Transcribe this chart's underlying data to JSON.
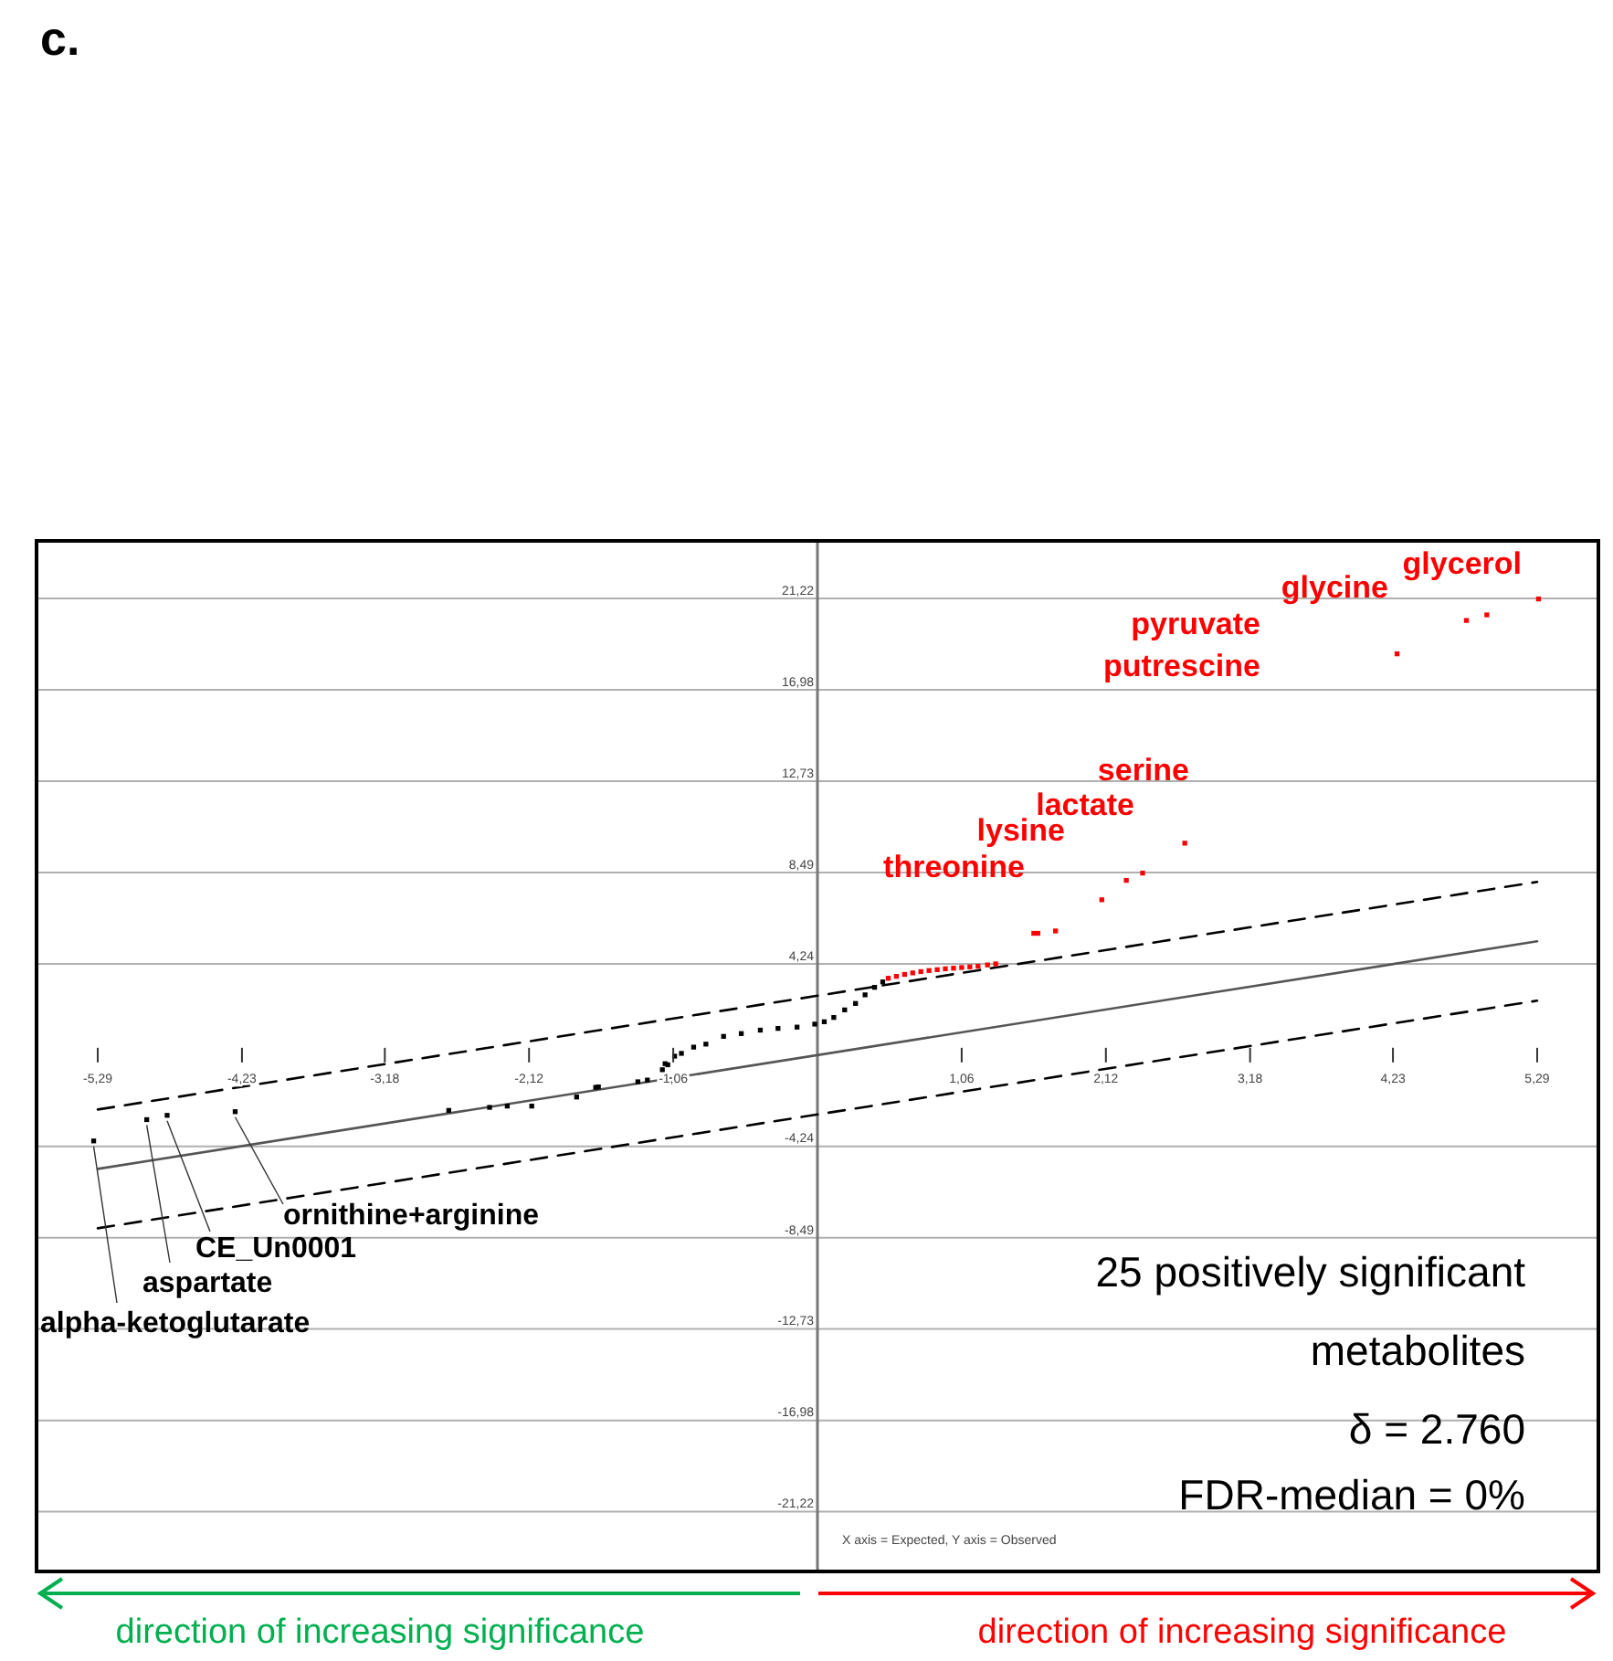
{
  "chart_data": {
    "type": "scatter",
    "title": "c.",
    "xlim": [
      -5.74,
      5.74
    ],
    "ylim": [
      -24,
      23.9
    ],
    "xticks": [
      {
        "value": -5.29,
        "label": "-5,29"
      },
      {
        "value": -4.23,
        "label": "-4,23"
      },
      {
        "value": -3.18,
        "label": "-3,18"
      },
      {
        "value": -2.12,
        "label": "-2,12"
      },
      {
        "value": -1.06,
        "label": "-1,06"
      },
      {
        "value": 1.06,
        "label": "1,06"
      },
      {
        "value": 2.12,
        "label": "2,12"
      },
      {
        "value": 3.18,
        "label": "3,18"
      },
      {
        "value": 4.23,
        "label": "4,23"
      },
      {
        "value": 5.29,
        "label": "5,29"
      }
    ],
    "yticks": [
      {
        "value": 21.22,
        "label": "21,22"
      },
      {
        "value": 16.98,
        "label": "16,98"
      },
      {
        "value": 12.73,
        "label": "12,73"
      },
      {
        "value": 8.49,
        "label": "8,49"
      },
      {
        "value": 4.24,
        "label": "4,24"
      },
      {
        "value": -4.24,
        "label": "-4,24"
      },
      {
        "value": -8.49,
        "label": "-8,49"
      },
      {
        "value": -12.73,
        "label": "-12,73"
      },
      {
        "value": -16.98,
        "label": "-16,98"
      },
      {
        "value": -21.22,
        "label": "-21,22"
      }
    ],
    "grid": "y",
    "marker": "square",
    "series": [
      {
        "color": "#ff0000",
        "x": [
          5.3,
          4.92,
          4.77,
          4.26,
          2.7,
          2.39,
          2.27,
          2.09,
          1.75,
          1.62,
          1.59,
          1.31,
          1.25,
          1.18,
          1.12,
          1.06,
          1.0,
          0.94,
          0.88,
          0.82,
          0.76,
          0.7,
          0.64,
          0.58,
          0.52
        ],
        "values": [
          21.2,
          20.46,
          20.2,
          18.65,
          9.85,
          8.46,
          8.12,
          7.22,
          5.77,
          5.66,
          5.66,
          4.24,
          4.19,
          4.13,
          4.1,
          4.07,
          4.04,
          4.01,
          3.97,
          3.93,
          3.88,
          3.82,
          3.75,
          3.66,
          3.57
        ]
      },
      {
        "color": "#000000",
        "x": [
          -5.32,
          -4.93,
          -4.78,
          -4.28,
          -2.71,
          -2.41,
          -2.28,
          -2.1,
          -1.77,
          -1.63,
          -1.61,
          -1.32,
          -1.25,
          -1.14,
          -1.12,
          -1.1,
          -1.05,
          -1.0,
          -0.91,
          -0.82,
          -0.69,
          -0.56,
          -0.42,
          -0.29,
          -0.15,
          -0.02,
          0.05,
          0.12,
          0.2,
          0.28,
          0.35,
          0.42,
          0.48
        ],
        "values": [
          -3.99,
          -3.0,
          -2.8,
          -2.63,
          -2.57,
          -2.43,
          -2.37,
          -2.37,
          -1.95,
          -1.5,
          -1.48,
          -1.24,
          -1.16,
          -0.68,
          -0.4,
          -0.45,
          -0.05,
          0.08,
          0.37,
          0.51,
          0.87,
          1.0,
          1.16,
          1.24,
          1.3,
          1.44,
          1.55,
          1.75,
          2.1,
          2.4,
          2.8,
          3.15,
          3.4
        ]
      },
      {
        "type": "line",
        "color": "#555555",
        "line_style": "solid",
        "marker": "none",
        "x": [
          -5.29,
          5.29
        ],
        "values": [
          -5.29,
          5.29
        ]
      },
      {
        "type": "line",
        "color": "#000000",
        "line_style": "dashed",
        "marker": "none",
        "x": [
          -5.29,
          5.29
        ],
        "values": [
          -2.53,
          8.05
        ]
      },
      {
        "type": "line",
        "color": "#000000",
        "line_style": "dashed",
        "marker": "none",
        "x": [
          -5.29,
          5.29
        ],
        "values": [
          -8.05,
          2.53
        ]
      }
    ],
    "annotations": [
      "glycerol",
      "glycine",
      "pyruvate",
      "putrescine",
      "serine",
      "lactate",
      "lysine",
      "threonine",
      {
        "text": "ornithine+arginine",
        "x": -4.28,
        "y": -2.63
      },
      {
        "text": "CE_Un0001",
        "x": -4.78,
        "y": -2.8
      },
      {
        "text": "aspartate",
        "x": -4.93,
        "y": -3.0
      },
      {
        "text": "alpha-ketoglutarate",
        "x": -5.32,
        "y": -3.99
      },
      "25 positively significant metabolites",
      "δ = 2.760",
      "FDR-median = 0%",
      "X axis = Expected, Y axis = Observed",
      "direction of increasing significance",
      "direction of increasing significance"
    ]
  }
}
